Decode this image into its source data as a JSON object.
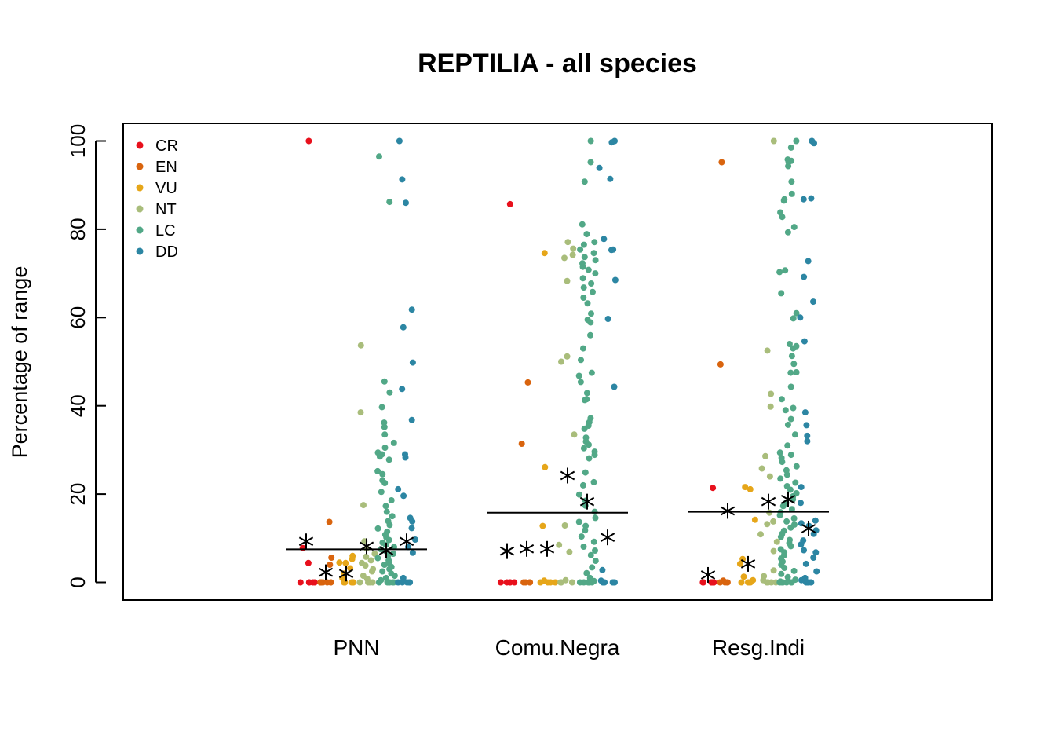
{
  "chart_data": {
    "type": "scatter",
    "subtype": "jittered strip chart",
    "title": "REPTILIA - all species",
    "xlabel": "",
    "ylabel": "Percentage of range",
    "ylim": [
      0,
      100
    ],
    "yticks": [
      0,
      20,
      40,
      60,
      80,
      100
    ],
    "grid": false,
    "legend_position": "top-left",
    "categories": [
      "PNN",
      "Comu.Negra",
      "Resg.Indi"
    ],
    "groups": [
      {
        "name": "CR",
        "color": "#e8101c"
      },
      {
        "name": "EN",
        "color": "#d9640e"
      },
      {
        "name": "VU",
        "color": "#e6a619"
      },
      {
        "name": "NT",
        "color": "#a9bd7b"
      },
      {
        "name": "LC",
        "color": "#52a887"
      },
      {
        "name": "DD",
        "color": "#2c86a3"
      }
    ],
    "overall_mean": [
      7.5,
      15.8,
      16.0
    ],
    "group_means": [
      [
        9.3,
        2.3,
        2.0,
        8.2,
        7.2,
        9.3
      ],
      [
        7.1,
        7.6,
        7.6,
        24.2,
        18.3,
        10.2
      ],
      [
        1.7,
        16.2,
        4.2,
        18.3,
        18.8,
        12.2
      ]
    ],
    "points": [
      [
        [
          100,
          7.8,
          4.4,
          0,
          0,
          0,
          0,
          0
        ],
        [
          13.7,
          5.6,
          4.0,
          0,
          0,
          0,
          0,
          0,
          0,
          0
        ],
        [
          6.0,
          5.3,
          4.5,
          4.4,
          3.2,
          2.0,
          1.0,
          0,
          0,
          0,
          0,
          0,
          0
        ],
        [
          53.7,
          38.5,
          17.5,
          9.3,
          7.7,
          6.5,
          5.8,
          5.0,
          4.4,
          3.8,
          3.0,
          2.5,
          1.5,
          0.8,
          0,
          0,
          0,
          0
        ],
        [
          96.5,
          86.2,
          45.5,
          43.0,
          39.7,
          36.2,
          35.2,
          33.5,
          31.6,
          30.5,
          29.4,
          29.0,
          28.5,
          27.8,
          25.2,
          24.5,
          23.1,
          22.5,
          20.5,
          18.6,
          17.3,
          16.0,
          15.0,
          13.9,
          13.0,
          12.2,
          11.5,
          10.8,
          10.2,
          9.6,
          9.0,
          8.5,
          8.0,
          7.5,
          7.0,
          6.5,
          6.0,
          5.5,
          5.0,
          4.5,
          4.0,
          3.5,
          3.0,
          2.5,
          2.0,
          1.5,
          1.0,
          0.5,
          0.2,
          0,
          0,
          0,
          0,
          0,
          0
        ],
        [
          100,
          91.3,
          86.0,
          61.8,
          57.8,
          49.8,
          43.8,
          36.8,
          29.0,
          28.3,
          21.1,
          19.6,
          14.6,
          13.8,
          12.3,
          9.7,
          8.0,
          6.7,
          1.0,
          0,
          0,
          0,
          0,
          0
        ]
      ],
      [
        [
          85.7,
          0,
          0,
          0,
          0,
          0
        ],
        [
          45.3,
          31.4,
          0,
          0,
          0,
          0
        ],
        [
          74.6,
          26.1,
          12.8,
          0.4,
          0,
          0,
          0,
          0
        ],
        [
          77.1,
          75.6,
          74.2,
          73.5,
          68.3,
          51.2,
          50.0,
          33.5,
          12.9,
          8.5,
          6.9,
          0.5,
          0,
          0,
          0,
          0,
          0
        ],
        [
          100,
          95.2,
          90.8,
          81.1,
          78.9,
          77.1,
          76.5,
          75.4,
          74.6,
          73.7,
          73.0,
          72.3,
          71.5,
          70.8,
          70.0,
          68.9,
          67.7,
          66.8,
          65.8,
          64.5,
          63.2,
          60.9,
          59.5,
          58.9,
          56.0,
          53.0,
          50.4,
          47.5,
          46.8,
          45.4,
          42.9,
          41.5,
          41.3,
          37.2,
          36.3,
          35.5,
          34.8,
          32.8,
          31.9,
          31.2,
          30.4,
          29.6,
          28.9,
          28.1,
          24.9,
          22.7,
          22.0,
          19.9,
          18.5,
          17.4,
          16.0,
          14.6,
          13.7,
          12.8,
          11.8,
          10.4,
          9.2,
          8.1,
          7.2,
          6.2,
          4.9,
          3.4,
          2.1,
          1.0,
          0.3,
          0,
          0,
          0,
          0,
          0,
          0
        ],
        [
          100,
          99.7,
          93.9,
          91.4,
          77.8,
          75.4,
          75.3,
          68.5,
          59.7,
          44.3,
          2.8,
          0.4,
          0,
          0,
          0,
          0,
          0,
          0
        ]
      ],
      [
        [
          21.4,
          0,
          0,
          0,
          0,
          0,
          0,
          0
        ],
        [
          95.2,
          49.4,
          0.4,
          0,
          0,
          0,
          0
        ],
        [
          21.6,
          21.1,
          14.2,
          5.3,
          4.2,
          1.3,
          0.5,
          0,
          0,
          0,
          0
        ],
        [
          100,
          52.5,
          42.7,
          39.8,
          28.6,
          25.8,
          24.0,
          15.8,
          13.8,
          13.2,
          10.9,
          9.2,
          7.1,
          2.7,
          1.4,
          0.5,
          0,
          0,
          0,
          0
        ],
        [
          100,
          98.5,
          95.8,
          95.5,
          95.2,
          94.3,
          90.8,
          88.0,
          86.8,
          86.5,
          83.8,
          82.8,
          80.5,
          79.3,
          70.7,
          70.3,
          65.5,
          61.0,
          59.8,
          54.0,
          53.5,
          53.0,
          51.3,
          49.5,
          47.6,
          47.5,
          44.3,
          41.5,
          39.5,
          39.0,
          37.0,
          35.7,
          33.5,
          31.0,
          29.4,
          28.9,
          28.2,
          27.3,
          26.3,
          25.4,
          24.4,
          23.5,
          22.6,
          21.8,
          21.0,
          20.2,
          19.5,
          18.8,
          18.0,
          17.3,
          16.6,
          15.9,
          15.2,
          14.5,
          13.8,
          13.1,
          12.4,
          11.7,
          11.0,
          10.3,
          9.6,
          8.9,
          8.2,
          7.5,
          6.8,
          6.1,
          5.4,
          4.7,
          4.0,
          3.3,
          2.6,
          1.9,
          1.2,
          0.6,
          0.2,
          0,
          0,
          0,
          0,
          0,
          0
        ],
        [
          100,
          99.5,
          87.0,
          86.8,
          72.8,
          69.2,
          63.6,
          60.0,
          54.6,
          38.5,
          35.6,
          33.2,
          32.0,
          21.6,
          18.0,
          14.0,
          13.4,
          12.8,
          11.8,
          11.0,
          9.5,
          8.6,
          7.3,
          6.8,
          5.6,
          4.2,
          2.5,
          1.0,
          0.5,
          0,
          0,
          0,
          0,
          0,
          0
        ]
      ]
    ]
  }
}
